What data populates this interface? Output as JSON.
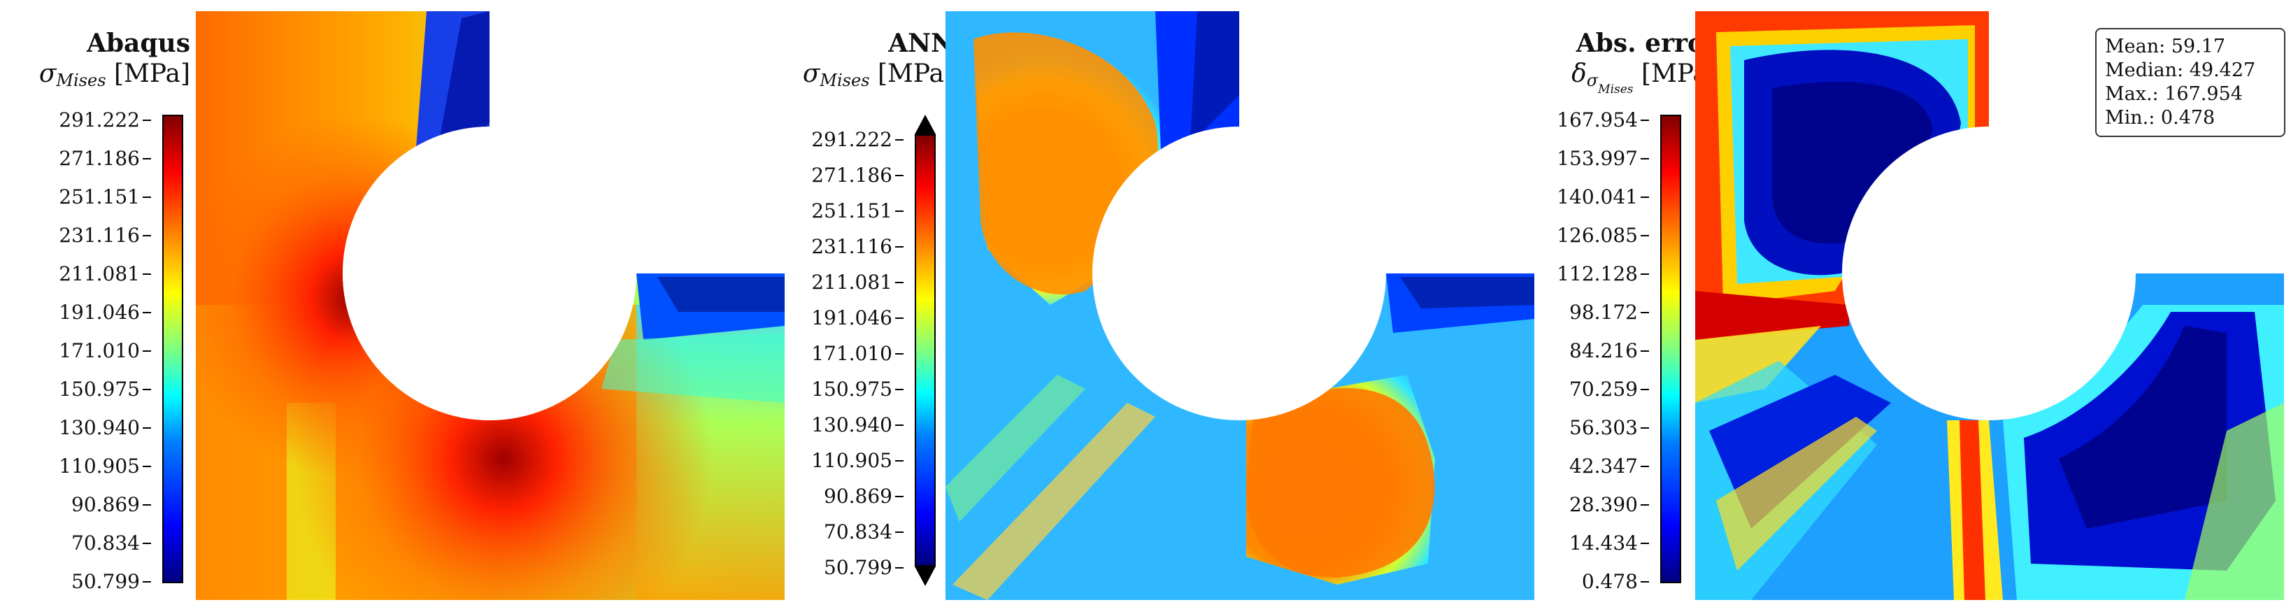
{
  "panels": [
    {
      "title": "Abaqus",
      "symbol": "σ",
      "subscript": "Mises",
      "unit": "[MPa]",
      "ticks": [
        "291.222",
        "271.186",
        "251.151",
        "231.116",
        "211.081",
        "191.046",
        "171.010",
        "150.975",
        "130.940",
        "110.905",
        "90.869",
        "70.834",
        "50.799"
      ]
    },
    {
      "title": "ANN",
      "symbol": "σ",
      "subscript": "Mises",
      "unit": "[MPa]",
      "ticks": [
        "291.222",
        "271.186",
        "251.151",
        "231.116",
        "211.081",
        "191.046",
        "171.010",
        "150.975",
        "130.940",
        "110.905",
        "90.869",
        "70.834",
        "50.799"
      ]
    },
    {
      "title": "Abs. error",
      "symbol": "δ",
      "subscript": "σ",
      "subsubscript": "Mises",
      "unit": "[MPa]",
      "ticks": [
        "167.954",
        "153.997",
        "140.041",
        "126.085",
        "112.128",
        "98.172",
        "84.216",
        "70.259",
        "56.303",
        "42.347",
        "28.390",
        "14.434",
        "0.478"
      ]
    }
  ],
  "stats": {
    "mean": "Mean: 59.17",
    "median": "Median: 49.427",
    "max": "Max.: 167.954",
    "min": "Min.: 0.478"
  },
  "colormap": {
    "name": "jet",
    "stops": [
      "#00007f",
      "#0000ff",
      "#007fff",
      "#00ffff",
      "#7fff7f",
      "#ffff00",
      "#ff7f00",
      "#ff0000",
      "#7f0000"
    ]
  }
}
